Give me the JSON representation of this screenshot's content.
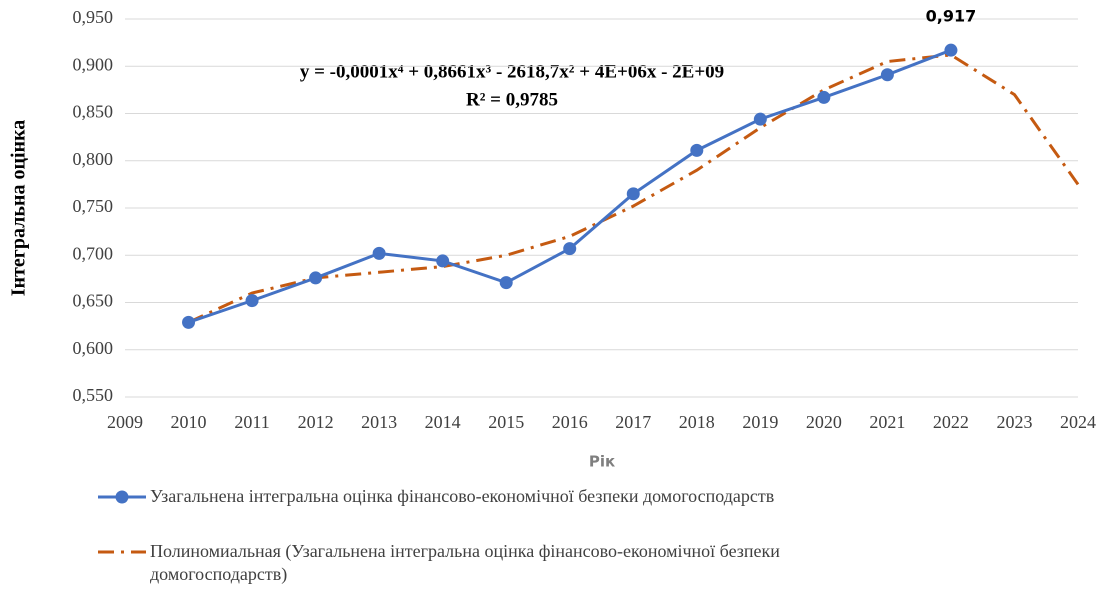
{
  "chart_data": {
    "type": "line",
    "x": [
      2010,
      2011,
      2012,
      2013,
      2014,
      2015,
      2016,
      2017,
      2018,
      2019,
      2020,
      2021,
      2022,
      2023,
      2024
    ],
    "series": [
      {
        "name": "Узагальнена інтегральна оцінка фінансово-економічної безпеки домогосподарств",
        "color": "#4472c4",
        "style": "solid",
        "marker": "circle",
        "values": [
          0.629,
          0.652,
          0.676,
          0.702,
          0.694,
          0.671,
          0.707,
          0.765,
          0.811,
          0.844,
          0.867,
          0.891,
          0.917,
          null,
          null
        ],
        "value_labels": [
          null,
          null,
          null,
          null,
          null,
          null,
          null,
          null,
          null,
          null,
          null,
          null,
          "0,917",
          null,
          null
        ]
      },
      {
        "name": "Полиномиальная (Узагальнена інтегральна оцінка фінансово-економічної безпеки домогосподарств)",
        "color": "#c55a11",
        "style": "dash-dot",
        "values": [
          0.629,
          0.66,
          0.676,
          0.682,
          0.688,
          0.7,
          0.72,
          0.752,
          0.79,
          0.835,
          0.875,
          0.905,
          0.912,
          0.87,
          0.775
        ]
      }
    ],
    "xlim": [
      2009,
      2024
    ],
    "xticks": [
      2009,
      2010,
      2011,
      2012,
      2013,
      2014,
      2015,
      2016,
      2017,
      2018,
      2019,
      2020,
      2021,
      2022,
      2023,
      2024
    ],
    "ylim": [
      0.55,
      0.95
    ],
    "yticks": [
      {
        "value": 0.55,
        "label": "0,550"
      },
      {
        "value": 0.6,
        "label": "0,600"
      },
      {
        "value": 0.65,
        "label": "0,650"
      },
      {
        "value": 0.7,
        "label": "0,700"
      },
      {
        "value": 0.75,
        "label": "0,750"
      },
      {
        "value": 0.8,
        "label": "0,800"
      },
      {
        "value": 0.85,
        "label": "0,850"
      },
      {
        "value": 0.9,
        "label": "0,900"
      },
      {
        "value": 0.95,
        "label": "0,950"
      }
    ],
    "grid": true,
    "x_label": "Рік",
    "y_label": "Інтегральна оцінка",
    "annotations": [
      "y = -0,0001x⁴ + 0,8661x³ - 2618,7x² + 4E+06x - 2E+09",
      "R² = 0,9785"
    ],
    "legend": "bottom"
  }
}
